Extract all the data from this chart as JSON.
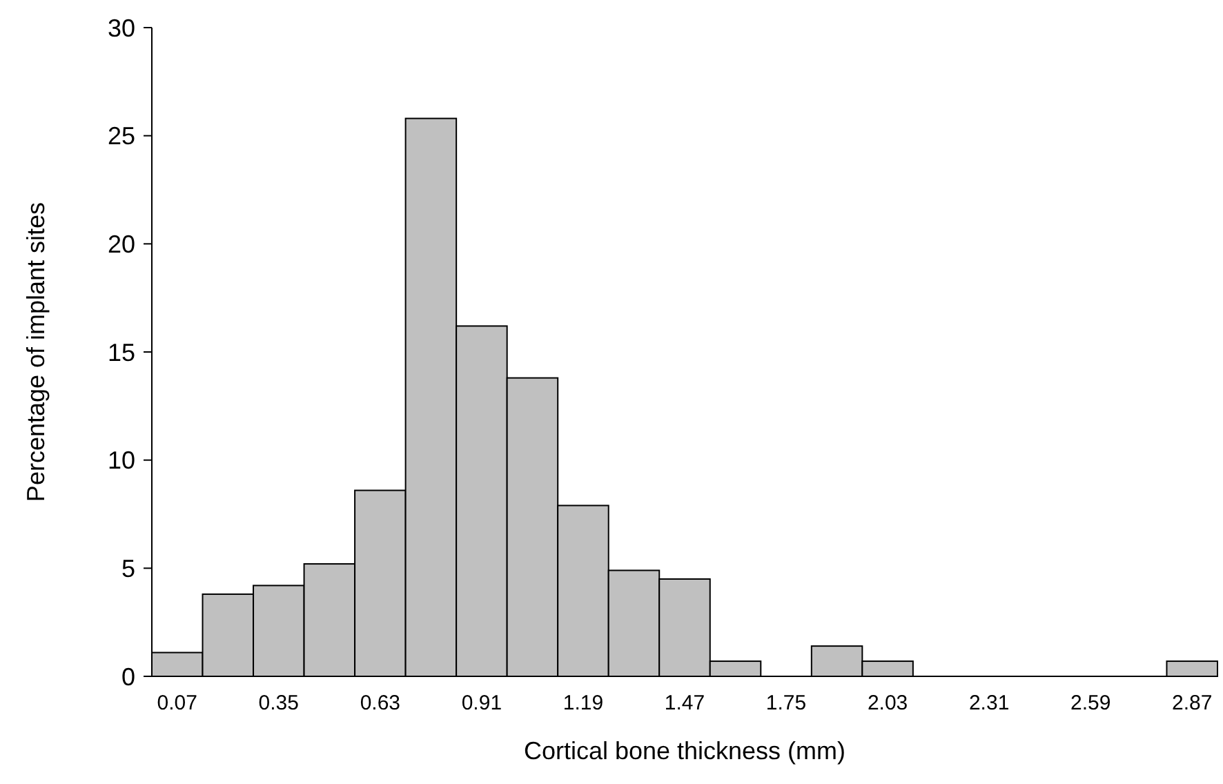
{
  "chart_data": {
    "type": "bar",
    "xlabel": "Cortical bone thickness (mm)",
    "ylabel": "Percentage of implant sites",
    "categories": [
      "0.07",
      null,
      "0.35",
      null,
      "0.63",
      null,
      "0.91",
      null,
      "1.19",
      null,
      "1.47",
      null,
      "1.75",
      null,
      "2.03",
      null,
      "2.31",
      null,
      "2.59",
      null,
      "2.87"
    ],
    "values": [
      1.1,
      3.8,
      4.2,
      5.2,
      8.6,
      25.8,
      16.2,
      13.8,
      7.9,
      4.9,
      4.5,
      0.7,
      0,
      1.4,
      0.7,
      0,
      0,
      0,
      0,
      0,
      0.7
    ],
    "color": "#c0c0c0",
    "ylim": [
      0,
      30
    ],
    "yticks": [
      0,
      5,
      10,
      15,
      20,
      25,
      30
    ],
    "grid": false
  }
}
